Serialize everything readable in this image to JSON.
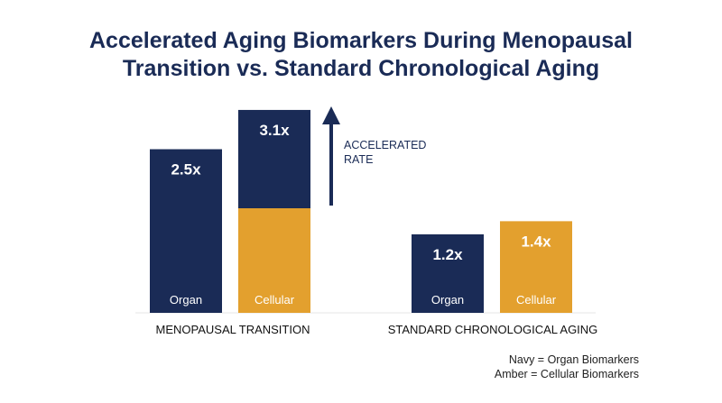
{
  "title_line1": "Accelerated Aging Biomarkers During Menopausal",
  "title_line2": "Transition vs. Standard Chronological Aging",
  "chart_data": {
    "type": "bar",
    "categories": [
      "MENOPAUSAL TRANSITION",
      "STANDARD CHRONOLOGICAL AGING"
    ],
    "series": [
      {
        "name": "Organ",
        "color": "#1a2b56",
        "values": [
          2.5,
          1.2
        ],
        "labels": [
          "2.5x",
          "1.2x"
        ]
      },
      {
        "name": "Cellular",
        "color": "#e3a02e",
        "values": [
          3.1,
          1.4
        ],
        "labels": [
          "3.1x",
          "1.4x"
        ]
      }
    ],
    "ylim": [
      0,
      3.5
    ],
    "grid": false,
    "annotation": {
      "line1": "ACCELERATED",
      "line2": "RATE",
      "color": "#1a2b56"
    },
    "menopausal_cellular_bar_note": "Cellular bar in menopausal transition is drawn with navy upper part and amber lower part"
  },
  "legend": {
    "line1": "Navy = Organ Biomarkers",
    "line2": "Amber = Cellular Biomarkers"
  }
}
